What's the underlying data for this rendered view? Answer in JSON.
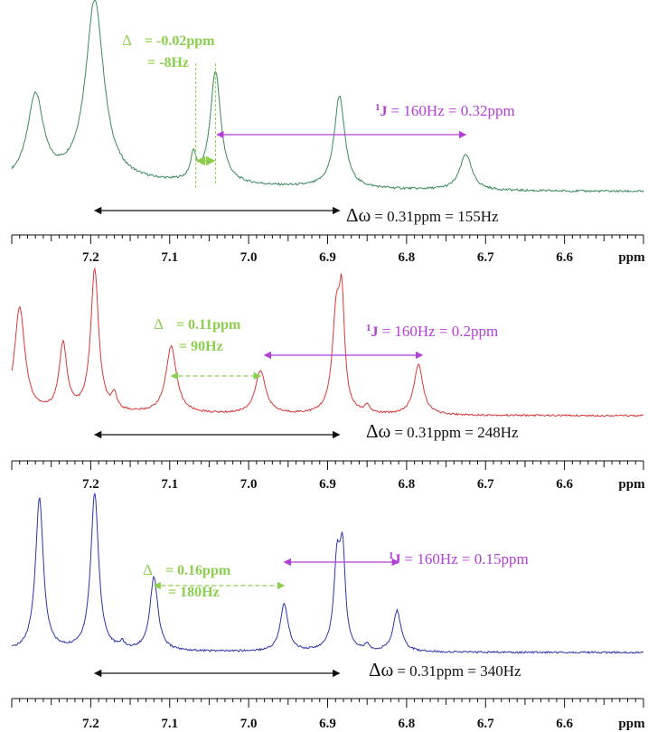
{
  "colors": {
    "green": "#3c8a5c",
    "red": "#d63a3a",
    "blue": "#2c35a8",
    "annotation_green": "#8ccf4e",
    "annotation_purple": "#b23fd6",
    "axis": "#111111"
  },
  "chart_data": [
    {
      "type": "line",
      "xlabel": "ppm",
      "xlim": [
        7.3,
        6.5
      ],
      "x_reversed": true,
      "tick_labels": [
        "7.2",
        "7.1",
        "7.0",
        "6.9",
        "6.8",
        "6.7",
        "6.6"
      ],
      "series_color": "#3c8a5c",
      "baseline": 0.08,
      "peaks": [
        {
          "x": 7.27,
          "height": 0.47,
          "width": 0.012
        },
        {
          "x": 7.195,
          "height": 1.0,
          "width": 0.014
        },
        {
          "x": 7.07,
          "height": 0.14,
          "width": 0.004
        },
        {
          "x": 7.042,
          "height": 0.62,
          "width": 0.008
        },
        {
          "x": 6.885,
          "height": 0.51,
          "width": 0.008
        },
        {
          "x": 6.725,
          "height": 0.2,
          "width": 0.009
        }
      ],
      "annotations": {
        "delta_symbol": "Δ",
        "delta_ppm": "= -0.02ppm",
        "delta_hz": "= -8Hz",
        "j_label": "J",
        "j_superscript": "1",
        "j_value": "= 160Hz =  0.32ppm",
        "dw_label": "Δω",
        "dw_value": "= 0.31ppm = 155Hz"
      }
    },
    {
      "type": "line",
      "xlabel": "ppm",
      "xlim": [
        7.3,
        6.5
      ],
      "x_reversed": true,
      "tick_labels": [
        "7.2",
        "7.1",
        "7.0",
        "6.9",
        "6.8",
        "6.7",
        "6.6"
      ],
      "series_color": "#d63a3a",
      "baseline": 0.02,
      "peaks": [
        {
          "x": 7.29,
          "height": 0.74,
          "width": 0.008
        },
        {
          "x": 7.235,
          "height": 0.47,
          "width": 0.006
        },
        {
          "x": 7.195,
          "height": 1.0,
          "width": 0.006
        },
        {
          "x": 7.17,
          "height": 0.1,
          "width": 0.004
        },
        {
          "x": 7.098,
          "height": 0.47,
          "width": 0.008
        },
        {
          "x": 6.985,
          "height": 0.3,
          "width": 0.008
        },
        {
          "x": 6.889,
          "height": 0.68,
          "width": 0.006
        },
        {
          "x": 6.882,
          "height": 0.68,
          "width": 0.004
        },
        {
          "x": 6.85,
          "height": 0.05,
          "width": 0.004
        },
        {
          "x": 6.785,
          "height": 0.35,
          "width": 0.007
        }
      ],
      "annotations": {
        "delta_symbol": "Δ",
        "delta_ppm": "= 0.11ppm",
        "delta_hz": "= 90Hz",
        "j_label": "J",
        "j_superscript": "1",
        "j_value": "= 160Hz =  0.2ppm",
        "dw_label": "Δω",
        "dw_value": "= 0.31ppm = 248Hz"
      }
    },
    {
      "type": "line",
      "xlabel": "ppm",
      "xlim": [
        7.3,
        6.5
      ],
      "x_reversed": true,
      "tick_labels": [
        "7.2",
        "7.1",
        "7.0",
        "6.9",
        "6.8",
        "6.7",
        "6.6"
      ],
      "series_color": "#2c35a8",
      "baseline": 0.01,
      "peaks": [
        {
          "x": 7.265,
          "height": 0.97,
          "width": 0.006
        },
        {
          "x": 7.195,
          "height": 1.0,
          "width": 0.006
        },
        {
          "x": 7.16,
          "height": 0.04,
          "width": 0.003
        },
        {
          "x": 7.12,
          "height": 0.47,
          "width": 0.006
        },
        {
          "x": 6.955,
          "height": 0.3,
          "width": 0.006
        },
        {
          "x": 6.888,
          "height": 0.56,
          "width": 0.005
        },
        {
          "x": 6.881,
          "height": 0.56,
          "width": 0.004
        },
        {
          "x": 6.85,
          "height": 0.04,
          "width": 0.003
        },
        {
          "x": 6.812,
          "height": 0.26,
          "width": 0.006
        }
      ],
      "annotations": {
        "delta_symbol": "Δ",
        "delta_ppm": "= 0.16ppm",
        "delta_hz": "= 180Hz",
        "j_label": "J",
        "j_superscript": "1",
        "j_value": "= 160Hz =  0.15ppm",
        "dw_label": "Δω",
        "dw_value": "= 0.31ppm = 340Hz"
      }
    }
  ]
}
